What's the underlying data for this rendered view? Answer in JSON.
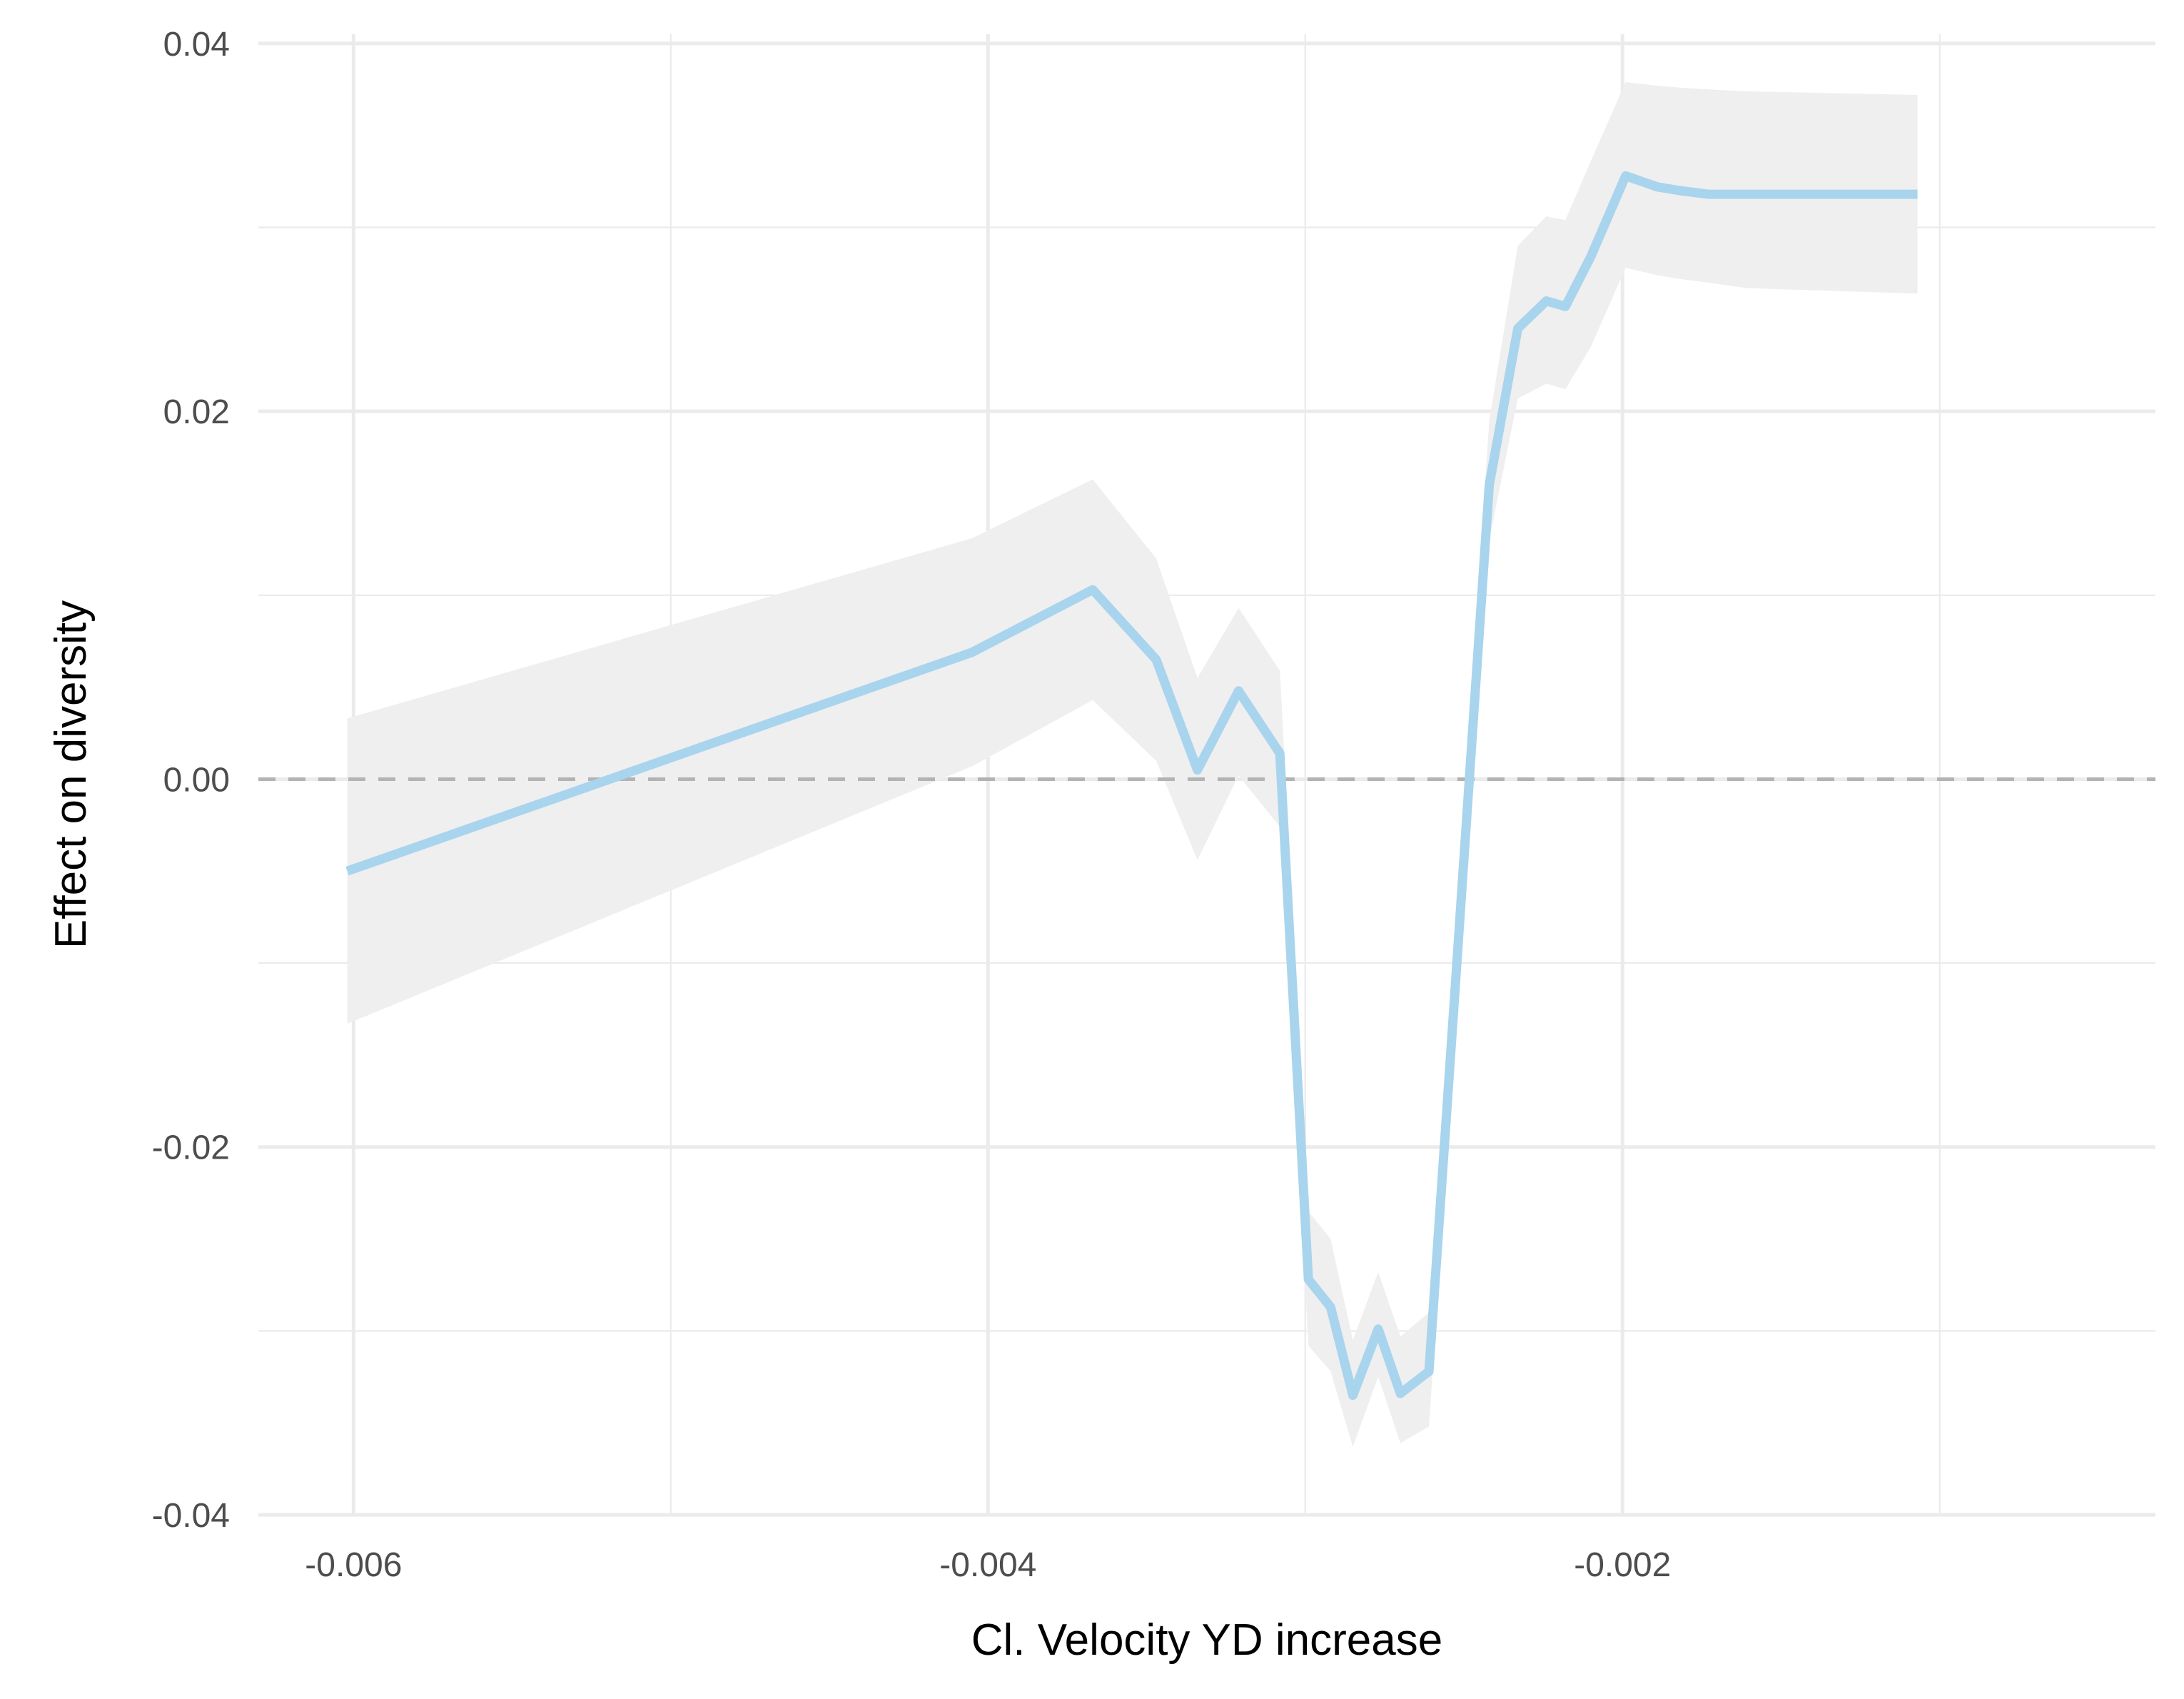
{
  "chart_data": {
    "type": "line",
    "title": "",
    "xlabel": "Cl. Velocity YD increase",
    "ylabel": "Effect on diversity",
    "xlim": [
      -0.0063,
      -0.00032
    ],
    "ylim": [
      -0.04,
      0.0405
    ],
    "x_ticks": [
      -0.006,
      -0.004,
      -0.002
    ],
    "x_tick_labels": [
      "-0.006",
      "-0.004",
      "-0.002"
    ],
    "x_minor_ticks": [
      -0.005,
      -0.003,
      -0.001
    ],
    "y_ticks": [
      -0.04,
      -0.02,
      0.0,
      0.02,
      0.04
    ],
    "y_tick_labels": [
      "-0.04",
      "-0.02",
      "0.00",
      "0.02",
      "0.04"
    ],
    "y_minor_ticks": [
      -0.03,
      -0.01,
      0.01,
      0.03
    ],
    "grid": true,
    "legend": "none",
    "reference_line": {
      "y": 0.0,
      "style": "dashed",
      "color": "#b3b3b3"
    },
    "colors": {
      "line": "#a8d4ee",
      "ribbon": "#efefef",
      "grid": "#ebebeb",
      "reference": "#b3b3b3"
    },
    "series": [
      {
        "x": [
          -0.00602,
          -0.00405,
          -0.00367,
          -0.00347,
          -0.00334,
          -0.00321,
          -0.00308,
          -0.00299,
          -0.00292,
          -0.00285,
          -0.00277,
          -0.0027,
          -0.00261,
          -0.00253,
          -0.00242,
          -0.00233,
          -0.00224,
          -0.00218,
          -0.0021,
          -0.00199,
          -0.00189,
          -0.00182,
          -0.00173,
          -0.00161,
          -0.00107
        ],
        "y": [
          -0.005,
          0.0069,
          0.0103,
          0.0065,
          0.0005,
          0.0048,
          0.0014,
          -0.0272,
          -0.0287,
          -0.0335,
          -0.0299,
          -0.0334,
          -0.0322,
          -0.012,
          0.016,
          0.0245,
          0.026,
          0.0257,
          0.0284,
          0.0328,
          0.0322,
          0.032,
          0.0318,
          0.0318,
          0.0318
        ],
        "lower": [
          -0.0133,
          0.0007,
          0.0043,
          0.001,
          -0.0044,
          0.0002,
          -0.0026,
          -0.0308,
          -0.0322,
          -0.0363,
          -0.0325,
          -0.0361,
          -0.0352,
          -0.015,
          0.013,
          0.0207,
          0.0215,
          0.0212,
          0.0235,
          0.0278,
          0.0274,
          0.0272,
          0.027,
          0.0267,
          0.0264
        ],
        "upper": [
          0.0033,
          0.0131,
          0.0163,
          0.012,
          0.0055,
          0.0093,
          0.0059,
          -0.0235,
          -0.025,
          -0.0305,
          -0.0268,
          -0.0303,
          -0.029,
          -0.0085,
          0.0195,
          0.029,
          0.0306,
          0.0304,
          0.0336,
          0.0379,
          0.0377,
          0.0376,
          0.0375,
          0.0374,
          0.0372
        ]
      }
    ]
  }
}
